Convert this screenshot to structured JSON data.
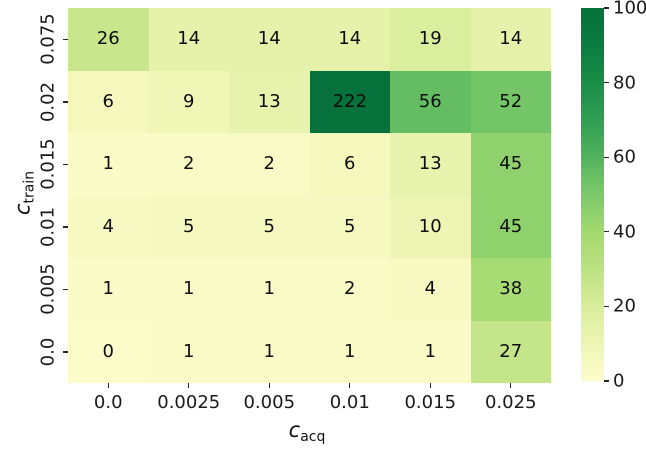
{
  "chart_data": {
    "type": "heatmap",
    "title": "",
    "xlabel": {
      "var": "c",
      "sub": "acq"
    },
    "ylabel": {
      "var": "c",
      "sub": "train"
    },
    "x_categories": [
      "0.0",
      "0.0025",
      "0.005",
      "0.01",
      "0.015",
      "0.025"
    ],
    "y_categories": [
      "0.075",
      "0.02",
      "0.015",
      "0.01",
      "0.005",
      "0.0"
    ],
    "values": [
      [
        26,
        14,
        14,
        14,
        19,
        14
      ],
      [
        6,
        9,
        13,
        222,
        56,
        52
      ],
      [
        1,
        2,
        2,
        6,
        13,
        45
      ],
      [
        4,
        5,
        5,
        5,
        10,
        45
      ],
      [
        1,
        1,
        1,
        2,
        4,
        38
      ],
      [
        0,
        1,
        1,
        1,
        1,
        27
      ]
    ],
    "vmin": 0,
    "vmax": 100,
    "colorbar_ticks": [
      0,
      20,
      40,
      60,
      80,
      100
    ],
    "legend_position": "right",
    "grid": false,
    "colormap_name": "YlGn",
    "colormap_stops": [
      [
        0.0,
        "#fcfcca"
      ],
      [
        0.1,
        "#eef5b4"
      ],
      [
        0.2,
        "#d9ed9b"
      ],
      [
        0.3,
        "#bce282"
      ],
      [
        0.4,
        "#a2d96f"
      ],
      [
        0.5,
        "#7cc96b"
      ],
      [
        0.55,
        "#68bf64"
      ],
      [
        0.6,
        "#52b25e"
      ],
      [
        0.7,
        "#2f9e52"
      ],
      [
        0.8,
        "#1a8d47"
      ],
      [
        0.9,
        "#0b7d40"
      ],
      [
        1.0,
        "#06713a"
      ]
    ],
    "annotation_color": "#0d0d0d",
    "tick_color": "#262626",
    "background": "#ffffff"
  }
}
